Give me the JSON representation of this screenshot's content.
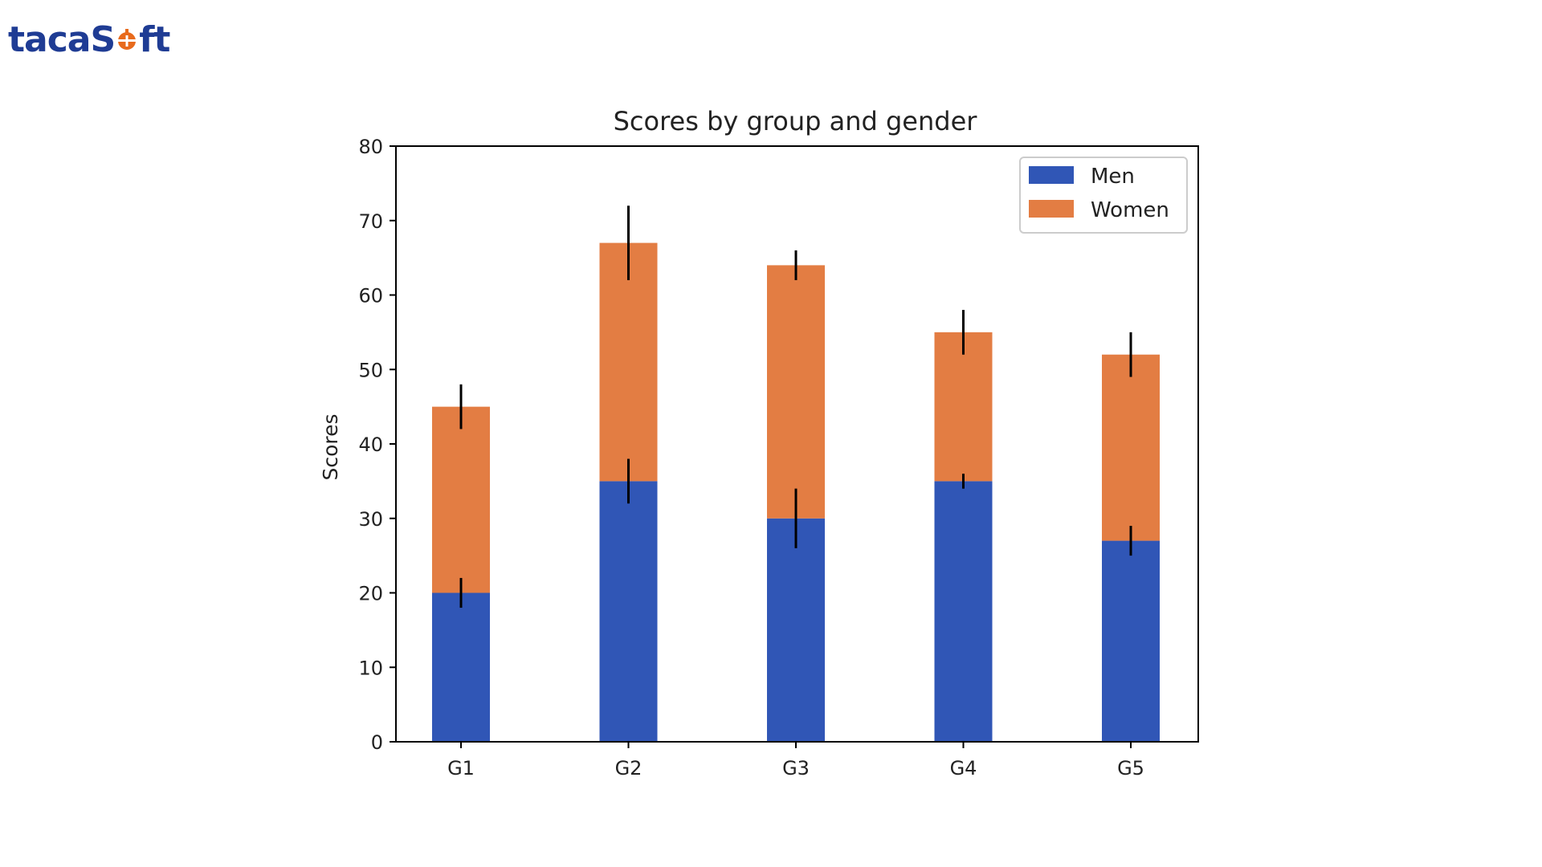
{
  "logo": {
    "text_before": "taca",
    "letter_s": "S",
    "text_after": "ft",
    "brand_color": "#1f3c94",
    "accent_color": "#e86a1c"
  },
  "chart_data": {
    "type": "bar",
    "stacked": true,
    "title": "Scores by group and gender",
    "xlabel": "",
    "ylabel": "Scores",
    "categories": [
      "G1",
      "G2",
      "G3",
      "G4",
      "G5"
    ],
    "series": [
      {
        "name": "Men",
        "values": [
          20,
          35,
          30,
          35,
          27
        ],
        "errors": [
          2,
          3,
          4,
          1,
          2
        ],
        "color": "#3056b6"
      },
      {
        "name": "Women",
        "values": [
          25,
          32,
          34,
          20,
          25
        ],
        "errors": [
          3,
          5,
          2,
          3,
          3
        ],
        "color": "#e37d43"
      }
    ],
    "ylim": [
      0,
      80
    ],
    "yticks": [
      0,
      10,
      20,
      30,
      40,
      50,
      60,
      70,
      80
    ],
    "grid": false,
    "legend_position": "top-right"
  }
}
